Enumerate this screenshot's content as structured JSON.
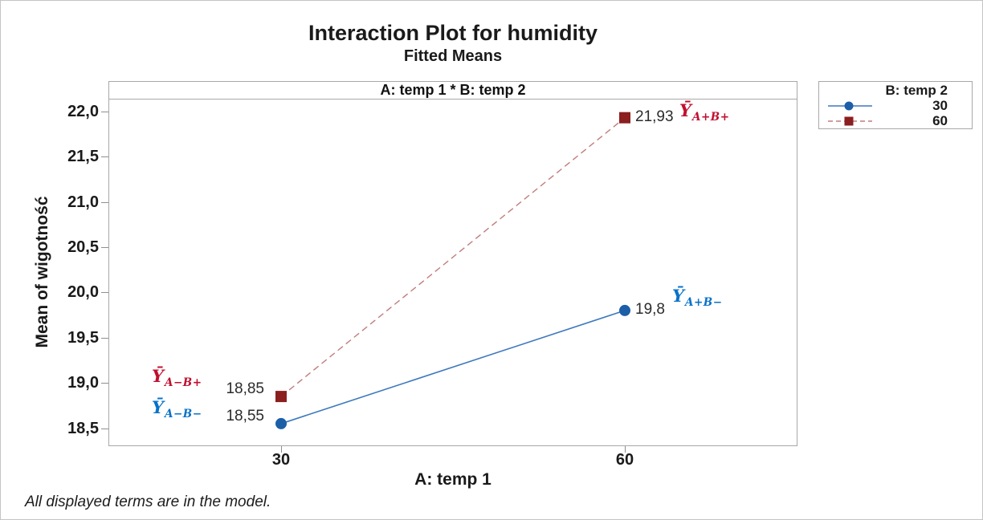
{
  "footnote": "All displayed terms are in the model.",
  "chart_data": {
    "type": "line",
    "title": "Interaction Plot for humidity",
    "subtitle": "Fitted Means",
    "panel_label": "A: temp 1 * B: temp 2",
    "xlabel": "A: temp 1",
    "ylabel": "Mean of wigotność",
    "grid": false,
    "ylim": [
      18.31,
      22.14
    ],
    "x_categories": [
      {
        "value": 30,
        "label": "30"
      },
      {
        "value": 60,
        "label": "60"
      }
    ],
    "yticks": [
      {
        "v": 18.5,
        "label": "18,5"
      },
      {
        "v": 19.0,
        "label": "19,0"
      },
      {
        "v": 19.5,
        "label": "19,5"
      },
      {
        "v": 20.0,
        "label": "20,0"
      },
      {
        "v": 20.5,
        "label": "20,5"
      },
      {
        "v": 21.0,
        "label": "21,0"
      },
      {
        "v": 21.5,
        "label": "21,5"
      },
      {
        "v": 22.0,
        "label": "22,0"
      }
    ],
    "legend": {
      "title": "B: temp 2",
      "position": "top-right"
    },
    "series": [
      {
        "name": "30",
        "marker": "circle",
        "line_style": "solid",
        "marker_color": "#1c5fa8",
        "line_color": "#3d79be",
        "points": [
          {
            "x": 30,
            "y": 18.55,
            "label": "18,55",
            "label_side": "left"
          },
          {
            "x": 60,
            "y": 19.8,
            "label": "19,8",
            "label_side": "right"
          }
        ]
      },
      {
        "name": "60",
        "marker": "square",
        "line_style": "dashed",
        "marker_color": "#8b1e1e",
        "line_color": "#c17d7d",
        "points": [
          {
            "x": 30,
            "y": 18.85,
            "label": "18,85",
            "label_side": "left"
          },
          {
            "x": 60,
            "y": 21.93,
            "label": "21,93",
            "label_side": "right"
          }
        ]
      }
    ],
    "annotations": [
      {
        "base": "Ȳ",
        "sub": "A−B+",
        "color": "#c01030"
      },
      {
        "base": "Ȳ",
        "sub": "A−B−",
        "color": "#0a72c8"
      },
      {
        "base": "Ȳ",
        "sub": "A+B+",
        "color": "#c01030"
      },
      {
        "base": "Ȳ",
        "sub": "A+B−",
        "color": "#0a72c8"
      }
    ]
  }
}
